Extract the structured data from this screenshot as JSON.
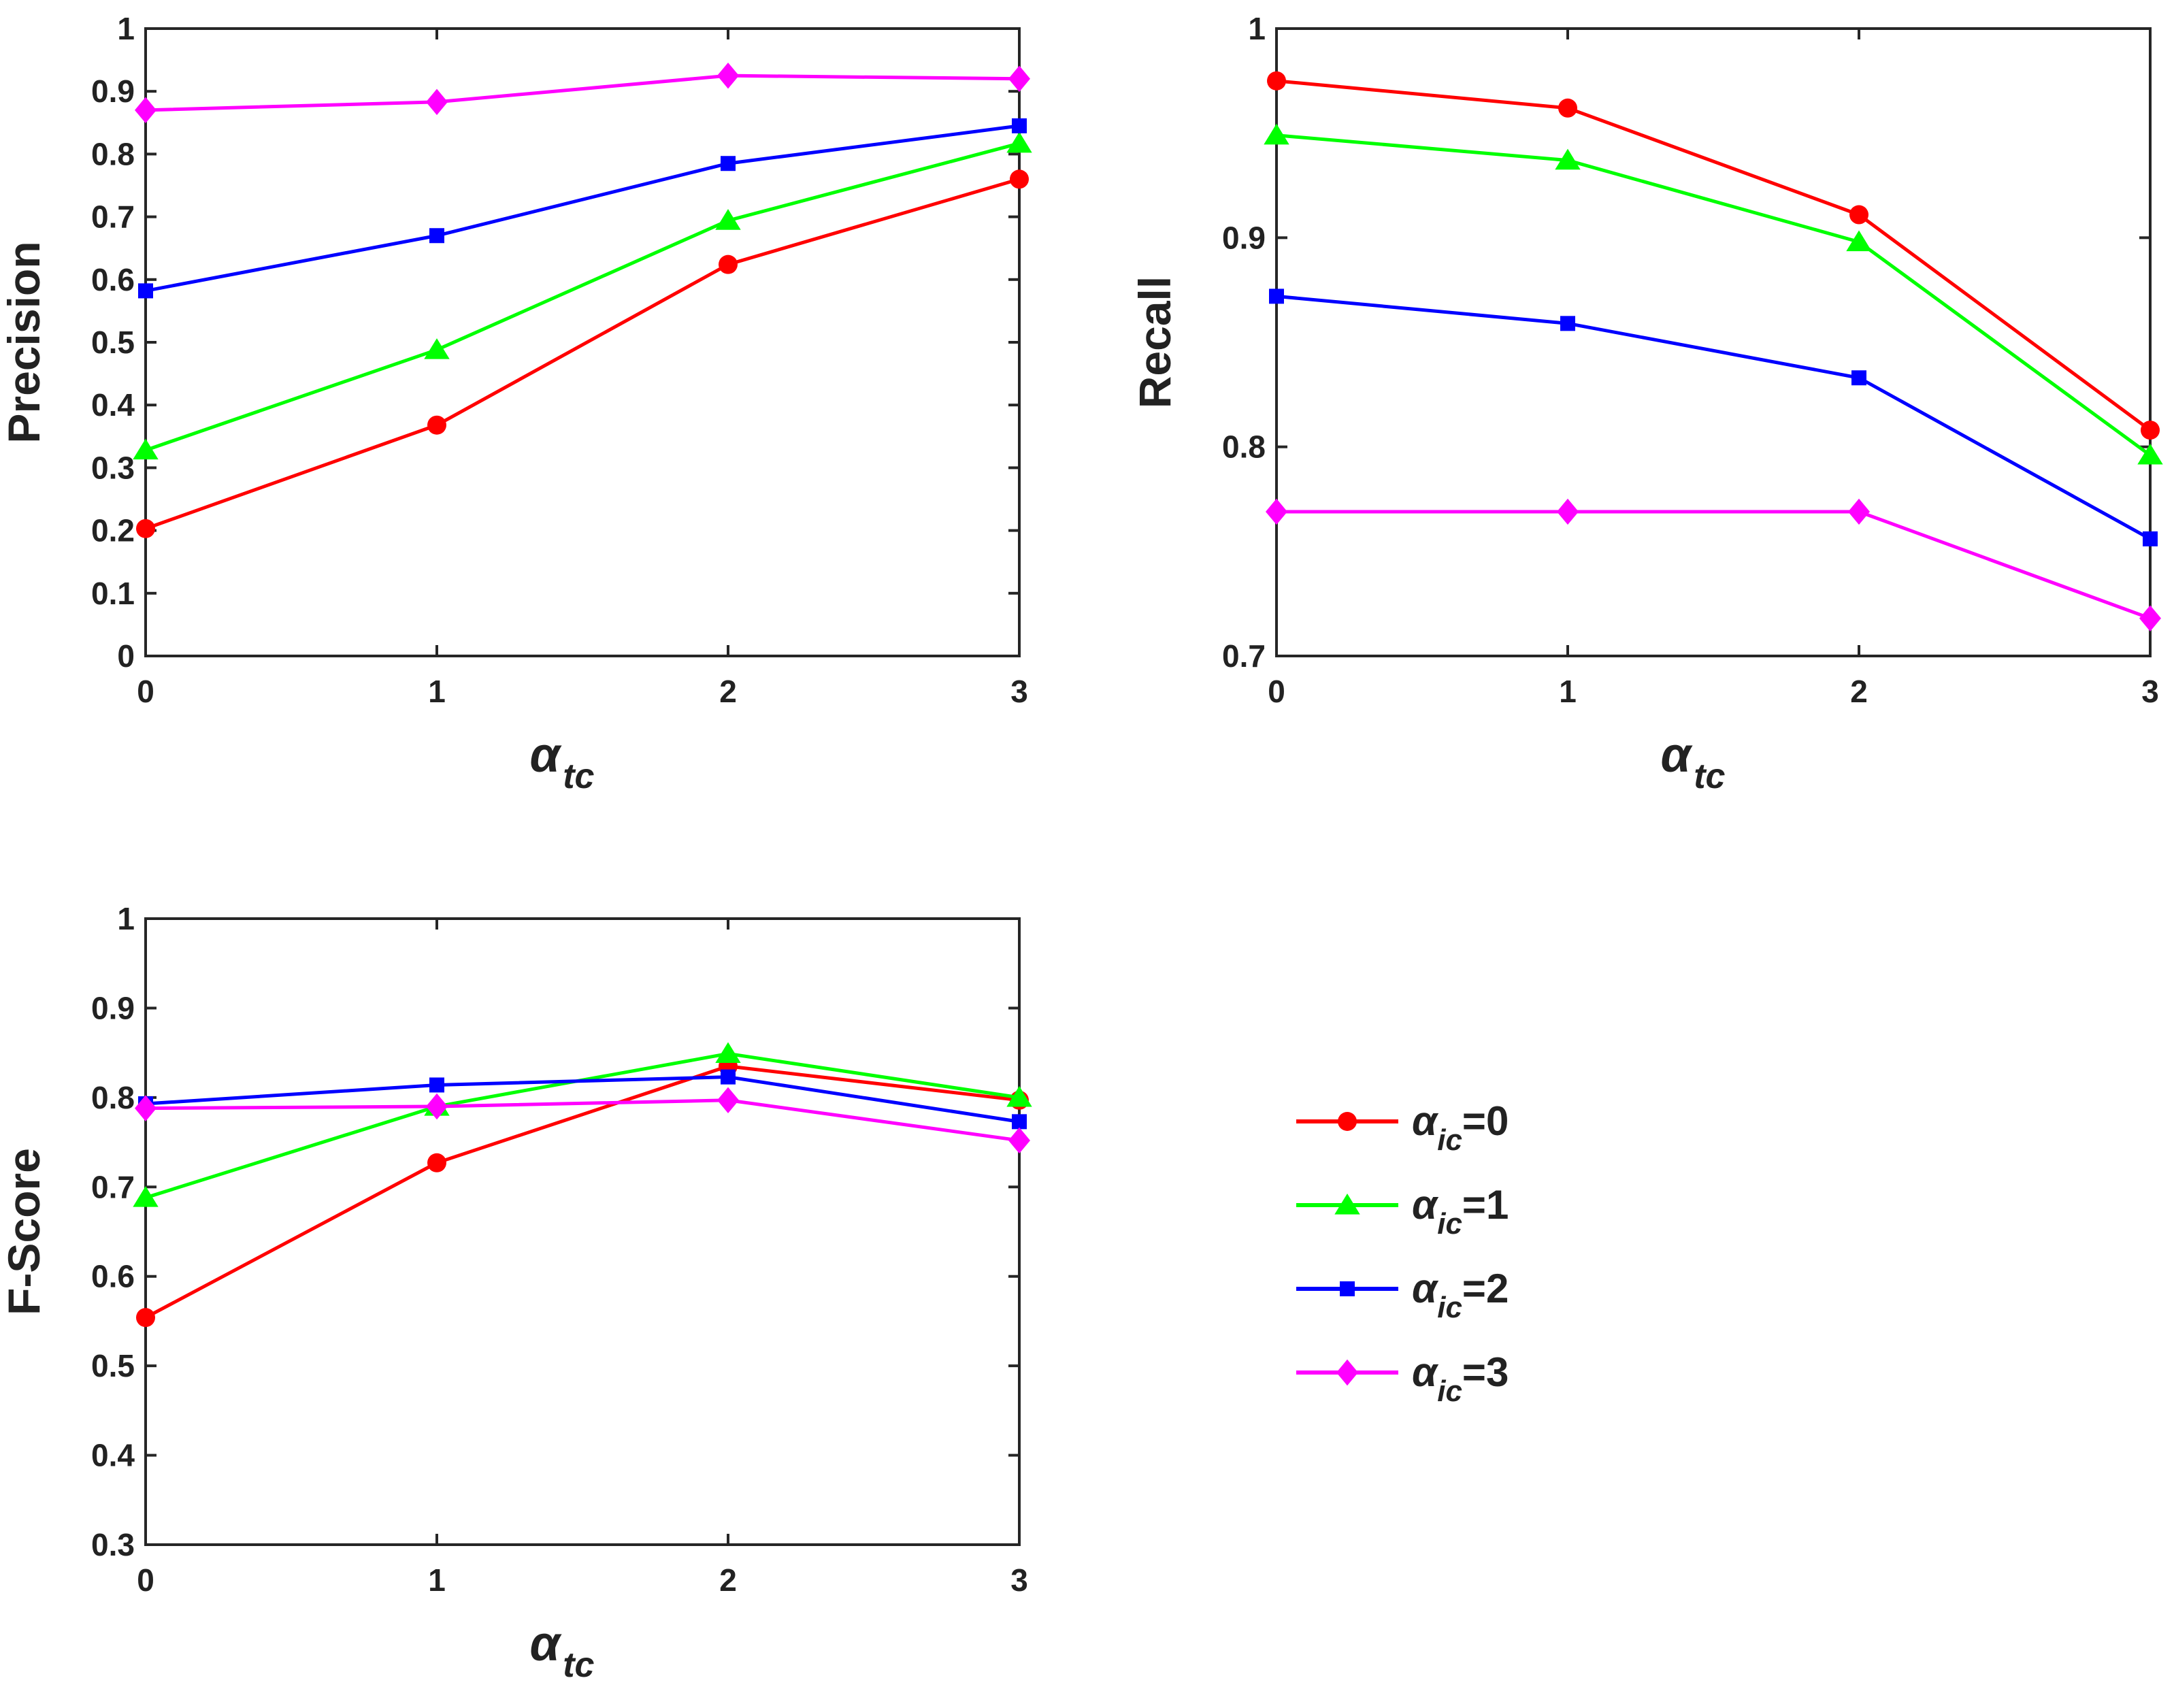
{
  "chart_data": [
    {
      "id": "precision",
      "type": "line",
      "ylabel": "Precision",
      "xlabel_main": "α",
      "xlabel_sub": "tc",
      "x": [
        0,
        1,
        2,
        3
      ],
      "xticks": [
        "0",
        "1",
        "2",
        "3"
      ],
      "ylim": [
        0,
        1
      ],
      "yticks": [
        "0",
        "0.1",
        "0.2",
        "0.3",
        "0.4",
        "0.5",
        "0.6",
        "0.7",
        "0.8",
        "0.9",
        "1"
      ],
      "ytick_values": [
        0,
        0.1,
        0.2,
        0.3,
        0.4,
        0.5,
        0.6,
        0.7,
        0.8,
        0.9,
        1
      ],
      "series": [
        {
          "name": "αic=0",
          "values": [
            0.203,
            0.368,
            0.624,
            0.76
          ]
        },
        {
          "name": "αic=1",
          "values": [
            0.328,
            0.488,
            0.694,
            0.817
          ]
        },
        {
          "name": "αic=2",
          "values": [
            0.582,
            0.67,
            0.785,
            0.845
          ]
        },
        {
          "name": "αic=3",
          "values": [
            0.87,
            0.883,
            0.925,
            0.92
          ]
        }
      ]
    },
    {
      "id": "recall",
      "type": "line",
      "ylabel": "Recall",
      "xlabel_main": "α",
      "xlabel_sub": "tc",
      "x": [
        0,
        1,
        2,
        3
      ],
      "xticks": [
        "0",
        "1",
        "2",
        "3"
      ],
      "ylim": [
        0.7,
        1
      ],
      "yticks": [
        "0.7",
        "0.8",
        "0.9",
        "1"
      ],
      "ytick_values": [
        0.7,
        0.8,
        0.9,
        1
      ],
      "series": [
        {
          "name": "αic=0",
          "values": [
            0.975,
            0.962,
            0.911,
            0.808
          ]
        },
        {
          "name": "αic=1",
          "values": [
            0.949,
            0.937,
            0.898,
            0.796
          ]
        },
        {
          "name": "αic=2",
          "values": [
            0.872,
            0.859,
            0.833,
            0.756
          ]
        },
        {
          "name": "αic=3",
          "values": [
            0.769,
            0.769,
            0.769,
            0.718
          ]
        }
      ]
    },
    {
      "id": "fscore",
      "type": "line",
      "ylabel": "F-Score",
      "xlabel_main": "α",
      "xlabel_sub": "tc",
      "x": [
        0,
        1,
        2,
        3
      ],
      "xticks": [
        "0",
        "1",
        "2",
        "3"
      ],
      "ylim": [
        0.3,
        1
      ],
      "yticks": [
        "0.3",
        "0.4",
        "0.5",
        "0.6",
        "0.7",
        "0.8",
        "0.9",
        "1"
      ],
      "ytick_values": [
        0.3,
        0.4,
        0.5,
        0.6,
        0.7,
        0.8,
        0.9,
        1
      ],
      "series": [
        {
          "name": "αic=0",
          "values": [
            0.554,
            0.727,
            0.835,
            0.797
          ]
        },
        {
          "name": "αic=1",
          "values": [
            0.688,
            0.79,
            0.849,
            0.8
          ]
        },
        {
          "name": "αic=2",
          "values": [
            0.793,
            0.814,
            0.823,
            0.773
          ]
        },
        {
          "name": "αic=3",
          "values": [
            0.788,
            0.79,
            0.797,
            0.752
          ]
        }
      ]
    }
  ],
  "legend": {
    "placement": "right of bottom plot",
    "entries": [
      {
        "main": "α",
        "sub": "ic",
        "suffix": "=0",
        "color": "#ff0000",
        "marker": "circle"
      },
      {
        "main": "α",
        "sub": "ic",
        "suffix": "=1",
        "color": "#00ff00",
        "marker": "triangle"
      },
      {
        "main": "α",
        "sub": "ic",
        "suffix": "=2",
        "color": "#0000ff",
        "marker": "square"
      },
      {
        "main": "α",
        "sub": "ic",
        "suffix": "=3",
        "color": "#ff00ff",
        "marker": "diamond"
      }
    ]
  },
  "series_style": [
    {
      "color": "#ff0000",
      "marker": "circle"
    },
    {
      "color": "#00ff00",
      "marker": "triangle"
    },
    {
      "color": "#0000ff",
      "marker": "square"
    },
    {
      "color": "#ff00ff",
      "marker": "diamond"
    }
  ]
}
